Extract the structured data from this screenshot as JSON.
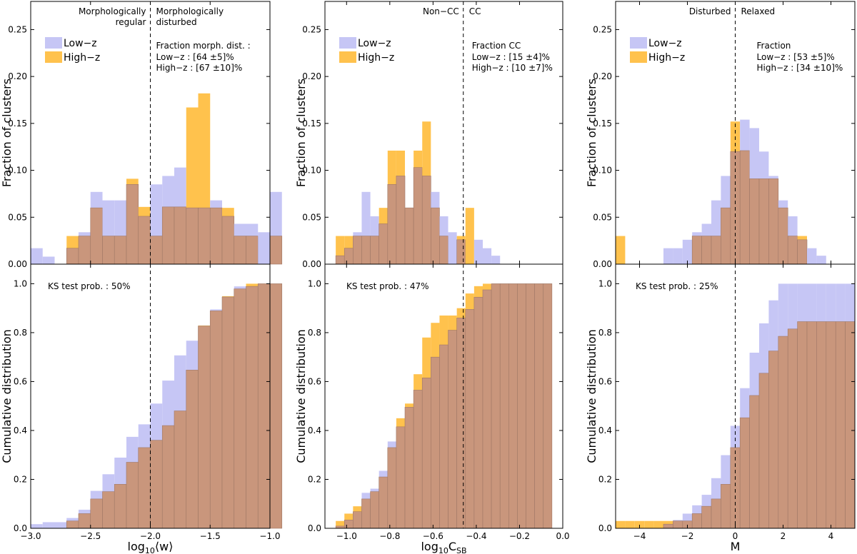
{
  "figure": {
    "ylabel_top": "Fraction  of  clusters",
    "ylabel_bottom": "Cumulative  distribution"
  },
  "colors": {
    "low_z": "#c6c6f5",
    "high_z": "#ffc24d",
    "overlap": "#c9967c"
  },
  "chart_data": [
    {
      "id": "w",
      "type": "bar",
      "xlabel": "log10⟨w⟩",
      "xlabel_main": "log",
      "xlabel_sub": "10",
      "xlabel_tail": "⟨w⟩",
      "xlim": [
        -3.0,
        -1.0
      ],
      "xticks": [
        -3.0,
        -2.5,
        -2.0,
        -1.5,
        -1.0
      ],
      "xtick_labels": [
        "−3.0",
        "−2.5",
        "−2.0",
        "−1.5",
        "−1.0"
      ],
      "divider": -2.0,
      "bin_start": -3.0,
      "bin_width": 0.1,
      "top": {
        "ylim": [
          0.0,
          0.28
        ],
        "yticks": [
          0.0,
          0.05,
          0.1,
          0.15,
          0.2,
          0.25
        ],
        "ytick_labels": [
          "0.00",
          "0.05",
          "0.10",
          "0.15",
          "0.20",
          "0.25"
        ],
        "region_left": [
          "Morphologically",
          "regular"
        ],
        "region_right": [
          "Morphologically",
          "disturbed"
        ],
        "legend": [
          "Low−z",
          "High−z"
        ],
        "fraction_title": "Fraction morph. dist. :",
        "fraction_low": "Low−z : [64 ±5]%",
        "fraction_high": "High−z : [67 ±10]%",
        "low_z": [
          0.017,
          0.008,
          0.0,
          0.017,
          0.034,
          0.077,
          0.068,
          0.068,
          0.085,
          0.051,
          0.085,
          0.094,
          0.103,
          0.06,
          0.06,
          0.068,
          0.051,
          0.043,
          0.043,
          0.034,
          0.077
        ],
        "high_z": [
          0.0,
          0.0,
          0.0,
          0.03,
          0.03,
          0.06,
          0.03,
          0.03,
          0.091,
          0.061,
          0.03,
          0.061,
          0.061,
          0.167,
          0.182,
          0.06,
          0.06,
          0.03,
          0.03,
          0.0,
          0.03
        ]
      },
      "bottom": {
        "ylim": [
          0.0,
          1.08
        ],
        "yticks": [
          0.0,
          0.2,
          0.4,
          0.6,
          0.8,
          1.0
        ],
        "ytick_labels": [
          "0.0",
          "0.2",
          "0.4",
          "0.6",
          "0.8",
          "1.0"
        ],
        "ks_text": "KS test prob. : 50%",
        "low_z": [
          0.017,
          0.025,
          0.025,
          0.042,
          0.076,
          0.153,
          0.221,
          0.289,
          0.374,
          0.425,
          0.51,
          0.604,
          0.707,
          0.767,
          0.827,
          0.895,
          0.946,
          0.989,
          0.989,
          1.0,
          1.0
        ],
        "high_z": [
          0.0,
          0.0,
          0.0,
          0.03,
          0.06,
          0.12,
          0.15,
          0.18,
          0.27,
          0.33,
          0.36,
          0.42,
          0.48,
          0.647,
          0.829,
          0.889,
          0.949,
          0.979,
          1.0,
          1.0,
          1.0
        ]
      }
    },
    {
      "id": "csb",
      "type": "bar",
      "xlabel": "log10CSB",
      "xlabel_main": "log",
      "xlabel_sub": "10",
      "xlabel_tail": "C",
      "xlabel_tail_sub": "SB",
      "xlim": [
        -1.1,
        0.0
      ],
      "xticks": [
        -1.0,
        -0.8,
        -0.6,
        -0.4,
        -0.2,
        0.0
      ],
      "xtick_labels": [
        "−1.0",
        "−0.8",
        "−0.6",
        "−0.4",
        "−0.2",
        "0.0"
      ],
      "divider": -0.46,
      "bin_start": -1.05,
      "bin_width": 0.04,
      "top": {
        "ylim": [
          0.0,
          0.28
        ],
        "yticks": [
          0.0,
          0.05,
          0.1,
          0.15,
          0.2,
          0.25
        ],
        "ytick_labels": [
          "0.00",
          "0.05",
          "0.10",
          "0.15",
          "0.20",
          "0.25"
        ],
        "region_left": [
          "Non−CC"
        ],
        "region_right": [
          "CC"
        ],
        "legend": [
          "Low−z",
          "High−z"
        ],
        "fraction_title": "Fraction CC",
        "fraction_low": "Low−z : [15 ±4]%",
        "fraction_high": "High−z : [10 ±7]%",
        "low_z": [
          0.009,
          0.017,
          0.034,
          0.077,
          0.051,
          0.043,
          0.085,
          0.094,
          0.06,
          0.103,
          0.094,
          0.077,
          0.051,
          0.034,
          0.026,
          0.0,
          0.026,
          0.017,
          0.009,
          0.0,
          0.0,
          0.0,
          0.0,
          0.0,
          0.0
        ],
        "high_z": [
          0.03,
          0.03,
          0.03,
          0.03,
          0.03,
          0.06,
          0.121,
          0.121,
          0.06,
          0.121,
          0.152,
          0.06,
          0.03,
          0.0,
          0.03,
          0.06,
          0.0,
          0.0,
          0.0,
          0.0,
          0.0,
          0.0,
          0.0,
          0.0,
          0.0
        ]
      },
      "bottom": {
        "ylim": [
          0.0,
          1.08
        ],
        "yticks": [
          0.0,
          0.2,
          0.4,
          0.6,
          0.8,
          1.0
        ],
        "ytick_labels": [
          "0.0",
          "0.2",
          "0.4",
          "0.6",
          "0.8",
          "1.0"
        ],
        "ks_text": "KS test prob. : 47%",
        "low_z": [
          0.009,
          0.034,
          0.068,
          0.145,
          0.162,
          0.235,
          0.355,
          0.415,
          0.495,
          0.565,
          0.615,
          0.7,
          0.75,
          0.81,
          0.86,
          0.895,
          0.945,
          0.975,
          1.0,
          1.0,
          1.0,
          1.0,
          1.0,
          1.0,
          1.0
        ],
        "high_z": [
          0.03,
          0.06,
          0.09,
          0.12,
          0.15,
          0.21,
          0.33,
          0.45,
          0.51,
          0.63,
          0.78,
          0.84,
          0.87,
          0.87,
          0.9,
          0.96,
          0.99,
          1.0,
          1.0,
          1.0,
          1.0,
          1.0,
          1.0,
          1.0,
          1.0
        ]
      }
    },
    {
      "id": "m",
      "type": "bar",
      "xlabel": "M",
      "xlabel_main": "M",
      "xlim": [
        -5.0,
        5.0
      ],
      "xticks": [
        -4,
        -2,
        0,
        2,
        4
      ],
      "xtick_labels": [
        "−4",
        "−2",
        "0",
        "2",
        "4"
      ],
      "divider": 0.0,
      "bin_start": -5.0,
      "bin_width": 0.4,
      "top": {
        "ylim": [
          0.0,
          0.28
        ],
        "yticks": [
          0.0,
          0.05,
          0.1,
          0.15,
          0.2,
          0.25
        ],
        "ytick_labels": [
          "0.00",
          "0.05",
          "0.10",
          "0.15",
          "0.20",
          "0.25"
        ],
        "region_left": [
          "Disturbed"
        ],
        "region_right": [
          "Relaxed"
        ],
        "legend": [
          "Low−z",
          "High−z"
        ],
        "fraction_title": "Fraction",
        "fraction_low": "Low−z : [53 ±5]%",
        "fraction_high": "High−z : [34 ±10]%",
        "low_z": [
          0.0,
          0.0,
          0.0,
          0.0,
          0.0,
          0.017,
          0.017,
          0.026,
          0.034,
          0.043,
          0.068,
          0.094,
          0.12,
          0.154,
          0.145,
          0.12,
          0.094,
          0.068,
          0.051,
          0.026,
          0.017,
          0.009,
          0.0,
          0.0,
          0.0
        ],
        "high_z": [
          0.03,
          0.0,
          0.0,
          0.0,
          0.0,
          0.0,
          0.0,
          0.0,
          0.03,
          0.03,
          0.03,
          0.06,
          0.152,
          0.121,
          0.091,
          0.091,
          0.091,
          0.06,
          0.03,
          0.03,
          0.0,
          0.0,
          0.0,
          0.0,
          0.0
        ]
      },
      "bottom": {
        "ylim": [
          0.0,
          1.08
        ],
        "yticks": [
          0.0,
          0.2,
          0.4,
          0.6,
          0.8,
          1.0
        ],
        "ytick_labels": [
          "0.0",
          "0.2",
          "0.4",
          "0.6",
          "0.8",
          "1.0"
        ],
        "ks_text": "KS test prob. : 25%",
        "low_z": [
          0.0,
          0.0,
          0.0,
          0.0,
          0.0,
          0.017,
          0.034,
          0.06,
          0.094,
          0.137,
          0.205,
          0.299,
          0.419,
          0.573,
          0.718,
          0.838,
          0.932,
          1.0,
          1.0,
          1.0,
          1.0,
          1.0,
          1.0,
          1.0,
          1.0
        ],
        "high_z": [
          0.03,
          0.03,
          0.03,
          0.03,
          0.03,
          0.03,
          0.03,
          0.03,
          0.06,
          0.09,
          0.12,
          0.18,
          0.33,
          0.452,
          0.543,
          0.634,
          0.725,
          0.785,
          0.815,
          0.845,
          0.845,
          0.845,
          0.845,
          0.845,
          0.845
        ]
      }
    }
  ]
}
